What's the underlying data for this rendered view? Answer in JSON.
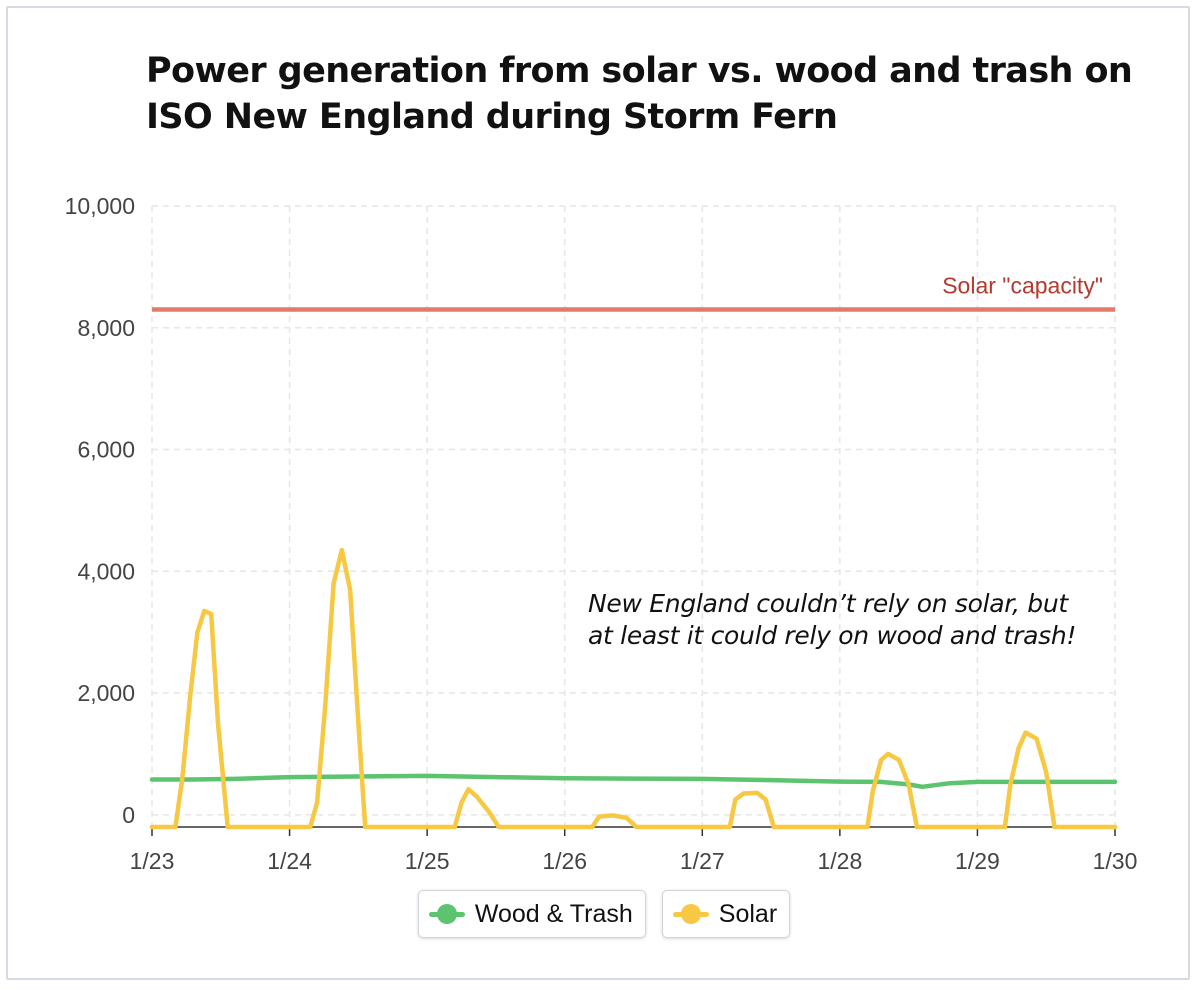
{
  "title": "Power generation from solar vs. wood and trash on ISO New England during Storm Fern",
  "annotation_line1": "New England couldn’t rely on solar, but",
  "annotation_line2": "at least it could rely on wood and trash!",
  "chart_data": {
    "type": "line",
    "title": "Power generation from solar vs. wood and trash on ISO New England during Storm Fern",
    "xlabel": "",
    "ylabel": "",
    "x_range": [
      23,
      30
    ],
    "x_ticks": [
      23,
      24,
      25,
      26,
      27,
      28,
      29,
      30
    ],
    "x_tick_labels": [
      "1/23",
      "1/24",
      "1/25",
      "1/26",
      "1/27",
      "1/28",
      "1/29",
      "1/30"
    ],
    "ylim": [
      -200,
      10000
    ],
    "y_ticks": [
      0,
      2000,
      4000,
      6000,
      8000,
      10000
    ],
    "y_tick_labels": [
      "0",
      "2,000",
      "4,000",
      "6,000",
      "8,000",
      "10,000"
    ],
    "grid": true,
    "legend_position": "bottom-center",
    "reference_line": {
      "label": "Solar \"capacity\"",
      "value": 8300,
      "color": "#e07b6a",
      "label_color": "#b23a2e"
    },
    "series": [
      {
        "name": "Wood & Trash",
        "color": "#5cc36e",
        "points": [
          [
            23.0,
            580
          ],
          [
            23.3,
            580
          ],
          [
            23.6,
            590
          ],
          [
            24.0,
            620
          ],
          [
            24.5,
            630
          ],
          [
            25.0,
            640
          ],
          [
            25.5,
            620
          ],
          [
            26.0,
            600
          ],
          [
            26.5,
            595
          ],
          [
            27.0,
            590
          ],
          [
            27.5,
            570
          ],
          [
            28.0,
            545
          ],
          [
            28.3,
            540
          ],
          [
            28.5,
            500
          ],
          [
            28.6,
            460
          ],
          [
            28.8,
            520
          ],
          [
            29.0,
            540
          ],
          [
            29.5,
            540
          ],
          [
            30.0,
            540
          ]
        ]
      },
      {
        "name": "Solar",
        "color": "#f7c843",
        "points": [
          [
            23.0,
            -200
          ],
          [
            23.17,
            -200
          ],
          [
            23.22,
            600
          ],
          [
            23.28,
            2000
          ],
          [
            23.33,
            3000
          ],
          [
            23.38,
            3350
          ],
          [
            23.43,
            3300
          ],
          [
            23.48,
            1500
          ],
          [
            23.55,
            -200
          ],
          [
            24.15,
            -200
          ],
          [
            24.2,
            200
          ],
          [
            24.26,
            1800
          ],
          [
            24.32,
            3800
          ],
          [
            24.38,
            4350
          ],
          [
            24.44,
            3700
          ],
          [
            24.5,
            1500
          ],
          [
            24.55,
            -200
          ],
          [
            25.2,
            -200
          ],
          [
            25.25,
            200
          ],
          [
            25.3,
            420
          ],
          [
            25.36,
            300
          ],
          [
            25.45,
            50
          ],
          [
            25.52,
            -200
          ],
          [
            26.2,
            -200
          ],
          [
            26.25,
            -30
          ],
          [
            26.35,
            -10
          ],
          [
            26.45,
            -50
          ],
          [
            26.52,
            -200
          ],
          [
            27.2,
            -200
          ],
          [
            27.24,
            250
          ],
          [
            27.3,
            350
          ],
          [
            27.4,
            360
          ],
          [
            27.46,
            250
          ],
          [
            27.52,
            -200
          ],
          [
            28.2,
            -200
          ],
          [
            28.24,
            400
          ],
          [
            28.3,
            900
          ],
          [
            28.35,
            1000
          ],
          [
            28.43,
            900
          ],
          [
            28.5,
            500
          ],
          [
            28.56,
            -200
          ],
          [
            29.2,
            -200
          ],
          [
            29.24,
            500
          ],
          [
            29.3,
            1100
          ],
          [
            29.35,
            1350
          ],
          [
            29.43,
            1250
          ],
          [
            29.5,
            700
          ],
          [
            29.56,
            -200
          ],
          [
            30.0,
            -200
          ]
        ]
      }
    ]
  }
}
